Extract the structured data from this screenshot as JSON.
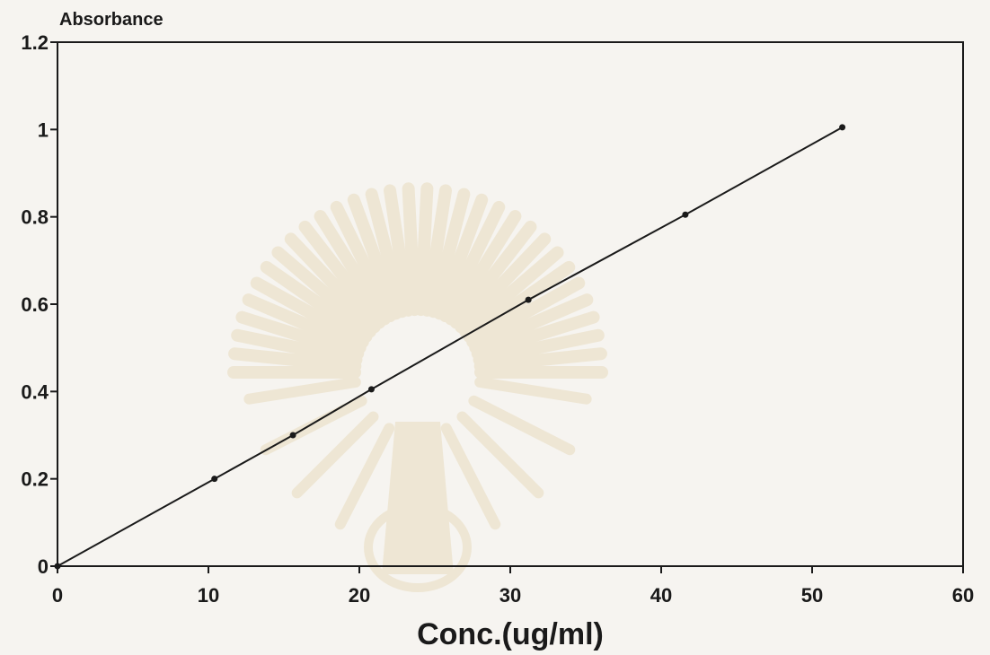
{
  "chart_data": {
    "type": "line",
    "title": "",
    "xlabel": "Conc.(ug/ml)",
    "ylabel": "Absorbance",
    "xlim": [
      0,
      60
    ],
    "ylim": [
      0,
      1.2
    ],
    "xticks": [
      0,
      10,
      20,
      30,
      40,
      50,
      60
    ],
    "xtick_labels": [
      "0",
      "10",
      "20",
      "30",
      "40",
      "50",
      "60"
    ],
    "yticks": [
      0,
      0.2,
      0.4,
      0.6,
      0.8,
      1.0,
      1.2
    ],
    "ytick_labels": [
      "0",
      "0.2",
      "0.4",
      "0.6",
      "0.8",
      "1",
      "1.2"
    ],
    "grid": false,
    "series": [
      {
        "x": [
          0,
          10.4,
          15.6,
          20.8,
          31.2,
          41.6,
          52.0
        ],
        "y": [
          0,
          0.2,
          0.3,
          0.405,
          0.61,
          0.805,
          1.005
        ],
        "markers": true
      }
    ],
    "line_color": "#1a1a1a",
    "background": "#f6f4f0"
  }
}
